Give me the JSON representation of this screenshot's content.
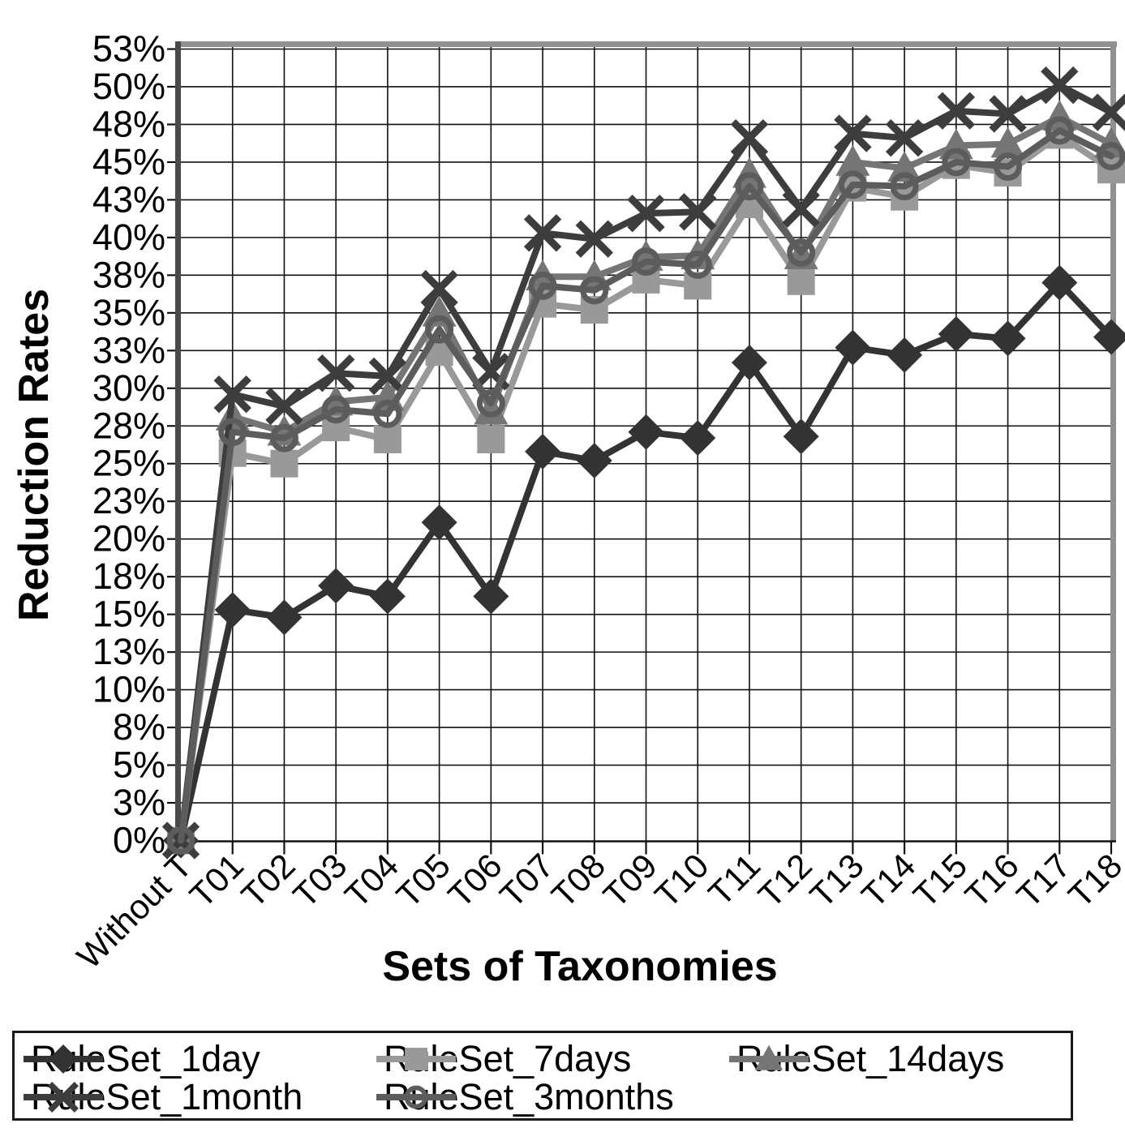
{
  "chart_data": {
    "type": "line",
    "title": "",
    "xlabel": "Sets of Taxonomies",
    "ylabel": "Reduction Rates",
    "grid": true,
    "legend_position": "bottom",
    "ylim": [
      0,
      52.5
    ],
    "y_tick_values": [
      0,
      2.5,
      5,
      7.5,
      10,
      12.5,
      15,
      17.5,
      20,
      22.5,
      25,
      27.5,
      30,
      32.5,
      35,
      37.5,
      40,
      42.5,
      45,
      47.5,
      50,
      52.5
    ],
    "y_tick_labels": [
      "0%",
      "3%",
      "5%",
      "8%",
      "10%",
      "13%",
      "15%",
      "18%",
      "20%",
      "23%",
      "25%",
      "28%",
      "30%",
      "33%",
      "35%",
      "38%",
      "40%",
      "43%",
      "45%",
      "48%",
      "50%",
      "53%"
    ],
    "categories": [
      "Without T",
      "T01",
      "T02",
      "T03",
      "T04",
      "T05",
      "T06",
      "T07",
      "T08",
      "T09",
      "T10",
      "T11",
      "T12",
      "T13",
      "T14",
      "T15",
      "T16",
      "T17",
      "T18"
    ],
    "series": [
      {
        "name": "RuleSet_1day",
        "marker": "diamond",
        "color": "#333333",
        "values": [
          0,
          15.3,
          14.8,
          16.9,
          16.2,
          21.1,
          16.2,
          25.8,
          25.2,
          27.1,
          26.7,
          31.7,
          26.8,
          32.7,
          32.2,
          33.6,
          33.3,
          37.0,
          33.4
        ]
      },
      {
        "name": "RuleSet_7days",
        "marker": "square",
        "color": "#999999",
        "values": [
          0,
          25.7,
          25.0,
          27.4,
          26.6,
          32.4,
          26.6,
          35.6,
          35.2,
          37.2,
          36.8,
          42.2,
          37.1,
          43.3,
          42.7,
          44.8,
          44.3,
          46.8,
          44.5
        ]
      },
      {
        "name": "RuleSet_14days",
        "marker": "triangle",
        "color": "#757575",
        "values": [
          0,
          28.1,
          27.1,
          29.1,
          29.4,
          35.0,
          28.5,
          37.4,
          37.4,
          38.7,
          38.8,
          44.2,
          38.8,
          45.0,
          44.6,
          46.1,
          46.2,
          48.0,
          46.2
        ]
      },
      {
        "name": "RuleSet_1month",
        "marker": "x",
        "color": "#3d3d3d",
        "values": [
          0,
          29.6,
          28.8,
          31.0,
          30.8,
          36.6,
          31.1,
          40.3,
          39.9,
          41.6,
          41.7,
          46.6,
          41.9,
          46.9,
          46.6,
          48.4,
          48.2,
          50.1,
          48.3
        ]
      },
      {
        "name": "RuleSet_3months",
        "marker": "circle-open",
        "color": "#5c5c5c",
        "values": [
          0,
          27.1,
          26.7,
          28.6,
          28.3,
          33.9,
          29.0,
          36.8,
          36.5,
          38.4,
          38.2,
          43.4,
          39.0,
          43.5,
          43.4,
          45.0,
          44.7,
          47.1,
          45.4
        ]
      }
    ],
    "legend_rows": [
      [
        0,
        1,
        2
      ],
      [
        3,
        4
      ]
    ],
    "legend_labels": [
      "RuleSet_1day",
      "RuleSet_7days",
      "RuleSet_14days",
      "RuleSet_1month",
      "RuleSet_3months"
    ],
    "border_colors": {
      "top_right": "#909090",
      "left_axis": "#4a4a4a",
      "gridline": "#111111"
    }
  }
}
